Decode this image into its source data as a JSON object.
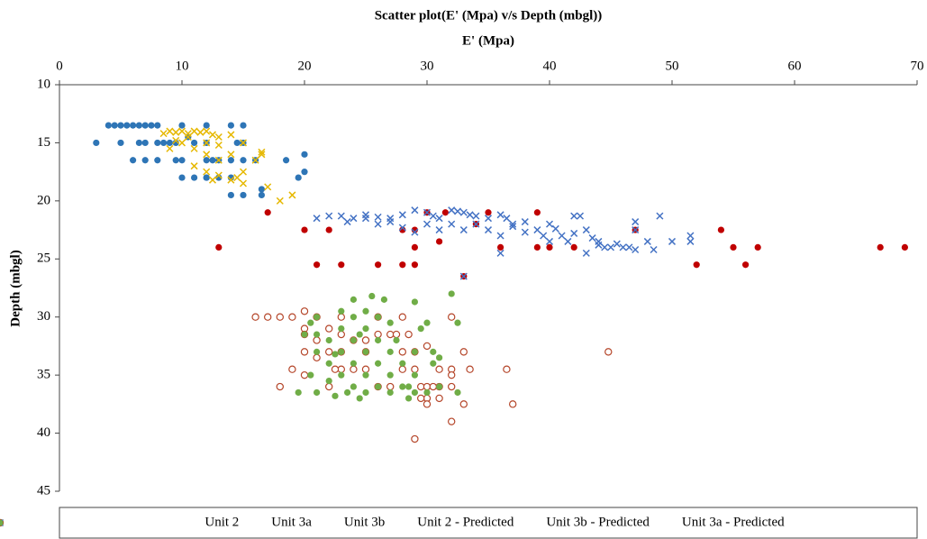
{
  "chart_data": {
    "type": "scatter",
    "title": "Scatter plot(E' (Mpa) v/s Depth (mbgl))",
    "x_label": "E' (Mpa)",
    "y_label": "Depth (mbgl)",
    "xlim": [
      0,
      70
    ],
    "xticks": [
      0,
      10,
      20,
      30,
      40,
      50,
      60,
      70
    ],
    "ylim": [
      10,
      45
    ],
    "yticks": [
      10,
      15,
      20,
      25,
      30,
      35,
      40,
      45
    ],
    "y_inverted": true,
    "x_axis_position": "top",
    "grid": false,
    "legend": "bottom",
    "series": [
      {
        "name": "Unit 2",
        "color": "#2e75b6",
        "marker": "circle",
        "x": [
          4,
          4.5,
          5,
          5.5,
          6,
          6.5,
          7,
          7.5,
          8,
          10,
          12,
          14,
          15,
          3,
          5,
          6.5,
          7,
          8,
          8.5,
          9,
          9.5,
          11,
          12,
          14.5,
          15,
          6,
          7,
          8,
          9.5,
          10,
          12,
          12.5,
          13,
          14,
          15,
          16,
          10,
          11,
          12,
          13,
          14,
          14,
          15,
          16.5,
          10.5,
          20,
          20,
          19.5,
          18.5,
          16.5,
          12
        ],
        "values": [
          13.5,
          13.5,
          13.5,
          13.5,
          13.5,
          13.5,
          13.5,
          13.5,
          13.5,
          13.5,
          13.5,
          13.5,
          13.5,
          15,
          15,
          15,
          15,
          15,
          15,
          15,
          15,
          15,
          15,
          15,
          15,
          16.5,
          16.5,
          16.5,
          16.5,
          16.5,
          16.5,
          16.5,
          16.5,
          16.5,
          16.5,
          16.5,
          18,
          18,
          18,
          18,
          18,
          19.5,
          19.5,
          19.5,
          14.5,
          16,
          17.5,
          18,
          16.5,
          19,
          18
        ]
      },
      {
        "name": "Unit 3a",
        "color": "#b5462a",
        "marker": "open-circle",
        "x": [
          16,
          17,
          18,
          19,
          20,
          20,
          20,
          20,
          21,
          21,
          22,
          22,
          23,
          23,
          23,
          24,
          24,
          25,
          25,
          26,
          26,
          27,
          27.5,
          28,
          28,
          28.5,
          29,
          29,
          29.5,
          30,
          30,
          30,
          31,
          31,
          31,
          32,
          32,
          32,
          32,
          32,
          33,
          33,
          33.5,
          36.5,
          37,
          44.8,
          29,
          18,
          19,
          20,
          22,
          23,
          25,
          26,
          27,
          28,
          29.5,
          30,
          30.5,
          21,
          22.5
        ],
        "values": [
          30,
          30,
          30,
          30,
          29.5,
          31,
          31.5,
          33,
          30,
          32,
          31,
          33,
          30,
          31.5,
          33,
          32,
          34.5,
          32,
          34.5,
          30,
          31.5,
          31.5,
          31.5,
          30,
          33,
          31.5,
          33,
          34.5,
          36,
          36,
          37,
          32.5,
          34.5,
          36,
          37,
          30,
          34.5,
          35,
          36,
          39,
          33,
          37.5,
          34.5,
          34.5,
          37.5,
          33,
          40.5,
          36,
          34.5,
          35,
          36,
          34.5,
          33,
          36,
          36,
          34.5,
          37,
          37.5,
          36,
          33.5,
          34.5
        ]
      },
      {
        "name": "Unit 3b",
        "color": "#c00000",
        "marker": "circle",
        "x": [
          17,
          13,
          20,
          22,
          21,
          23,
          26,
          28,
          28,
          29,
          29,
          29,
          31,
          33,
          34,
          35,
          36,
          39,
          39,
          40,
          42,
          47,
          52,
          54,
          55,
          56,
          57,
          67,
          69,
          30,
          31.5
        ],
        "values": [
          21,
          24,
          22.5,
          22.5,
          25.5,
          25.5,
          25.5,
          22.5,
          25.5,
          24,
          25.5,
          22.5,
          23.5,
          26.5,
          22,
          21,
          24,
          21,
          24,
          24,
          24,
          22.5,
          25.5,
          22.5,
          24,
          25.5,
          24,
          24,
          24,
          21,
          21
        ]
      },
      {
        "name": "Unit 2 - Predicted",
        "color": "#e6b800",
        "marker": "x",
        "x": [
          8.5,
          9,
          9.5,
          10,
          10.5,
          11,
          11.5,
          12,
          12.5,
          9,
          10,
          11,
          12,
          13,
          13,
          14,
          15,
          9.5,
          11,
          12,
          12,
          13,
          13,
          14,
          14,
          15,
          15,
          16.5,
          16.5,
          17,
          18,
          19,
          12.5,
          14.5,
          10.5,
          16
        ],
        "values": [
          14.2,
          14,
          14.1,
          14,
          14.2,
          14,
          14.1,
          14,
          14.3,
          15.5,
          15,
          15.5,
          15,
          14.5,
          15.2,
          14.3,
          15,
          14.8,
          17,
          16,
          17.5,
          16.5,
          17.8,
          16,
          18.2,
          17.5,
          18.5,
          16,
          15.8,
          18.8,
          20,
          19.5,
          18.2,
          18,
          14.5,
          16.5
        ]
      },
      {
        "name": "Unit 3b - Predicted",
        "color": "#4472c4",
        "marker": "x",
        "x": [
          21,
          22,
          23,
          24,
          25,
          26,
          27,
          28,
          29,
          30,
          30.5,
          31,
          32,
          32.5,
          33,
          33.5,
          34,
          35,
          36,
          36.5,
          37,
          38,
          39,
          40,
          41,
          42,
          42.5,
          43,
          44,
          45,
          46,
          47,
          47,
          48,
          49,
          48.5,
          50,
          51.5,
          51.5,
          45.5,
          44.5,
          43.5,
          42,
          41.5,
          40.5,
          39.5,
          38,
          37,
          36,
          35,
          34,
          33,
          32,
          31,
          30,
          29,
          28,
          27,
          26,
          36,
          33,
          25,
          23.5,
          46.5,
          44,
          40,
          43,
          47
        ],
        "values": [
          21.5,
          21.3,
          21.3,
          21.5,
          21.2,
          21.4,
          21.5,
          21.2,
          20.8,
          21,
          21.3,
          21.5,
          20.8,
          20.9,
          21,
          21.2,
          21.3,
          21.5,
          21.2,
          21.5,
          22,
          21.8,
          22.5,
          22,
          23,
          21.3,
          21.3,
          22.5,
          23.5,
          24,
          24,
          21.8,
          22.5,
          23.5,
          21.3,
          24.2,
          23.5,
          23,
          23.5,
          23.7,
          24,
          23.2,
          22.8,
          23.5,
          22.4,
          23,
          22.7,
          22.2,
          23,
          22.5,
          22,
          22.5,
          22,
          22.5,
          22,
          22.7,
          22.3,
          21.8,
          22,
          24.5,
          26.5,
          21.5,
          21.8,
          24,
          23.8,
          23.5,
          24.5,
          24.2
        ]
      },
      {
        "name": "Unit 3a - Predicted",
        "color": "#70ad47",
        "marker": "circle",
        "x": [
          20,
          20.5,
          21,
          21,
          21,
          20.5,
          19.5,
          21,
          22,
          22,
          22,
          22.5,
          23,
          23,
          23,
          23,
          23.5,
          24,
          24,
          24,
          24,
          24,
          24.5,
          25,
          25,
          25,
          25,
          25,
          25.5,
          26,
          26,
          26,
          26,
          26.5,
          27,
          27,
          27,
          27,
          27.5,
          28,
          28,
          28.5,
          29,
          29,
          29,
          29,
          29.5,
          30,
          30,
          30.5,
          30.5,
          31,
          31,
          32,
          32.5,
          32.5,
          24.5,
          22.5,
          28.5
        ],
        "values": [
          31.5,
          30.5,
          30,
          31.5,
          33,
          35,
          36.5,
          36.5,
          32,
          34,
          35.5,
          36.8,
          29.5,
          31,
          33,
          35,
          36.5,
          28.5,
          30,
          32,
          34,
          36,
          37,
          29.5,
          31,
          33,
          35,
          36.5,
          28.2,
          30,
          32,
          34,
          36,
          28.5,
          30.5,
          33,
          35,
          36.5,
          32,
          34,
          36,
          37,
          28.7,
          33,
          35,
          36.5,
          31,
          30.5,
          36.5,
          33,
          34,
          36,
          33.5,
          28,
          30.5,
          36.5,
          31.5,
          33.2,
          36
        ]
      }
    ]
  }
}
